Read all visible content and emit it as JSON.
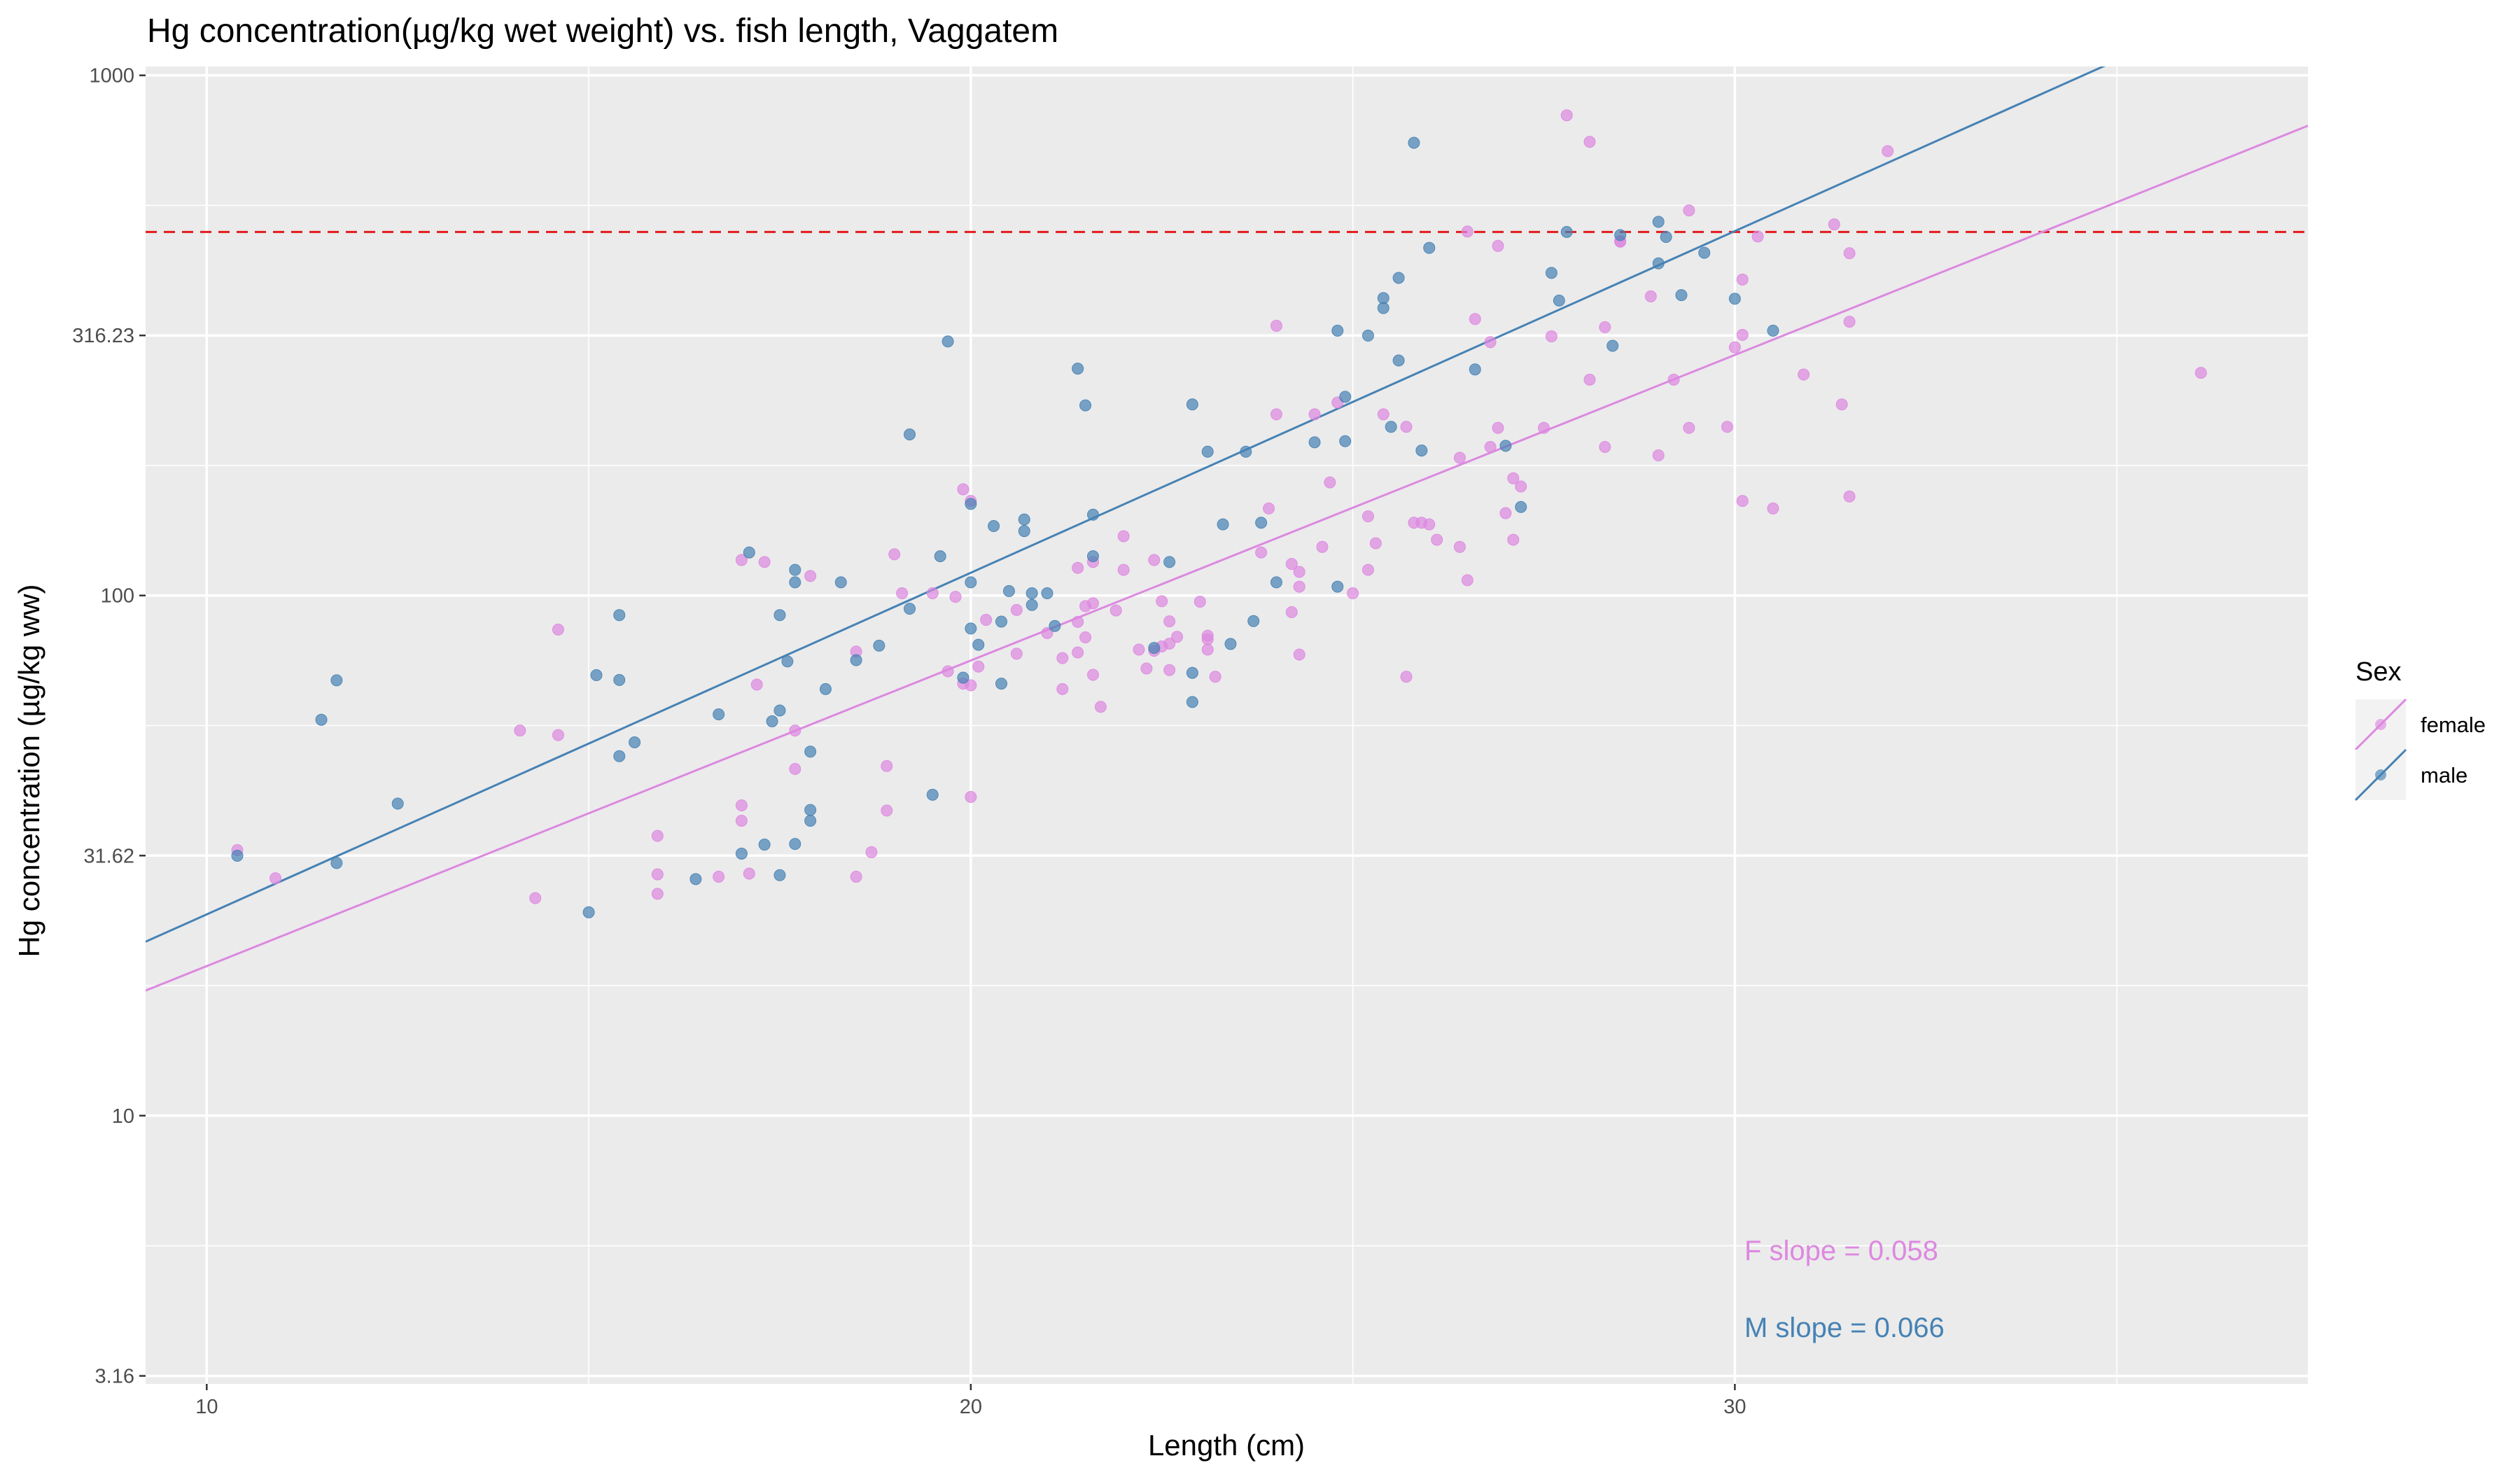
{
  "chart_data": {
    "type": "scatter",
    "title": "Hg concentration(µg/kg wet weight) vs. fish length, Vaggatem",
    "xlabel": "Length (cm)",
    "ylabel": "Hg concentration (µg/kg ww)",
    "y_scale": "log10",
    "xlim": [
      9.2,
      37.5
    ],
    "ylim": [
      3.05,
      1040
    ],
    "x_ticks": [
      10,
      20,
      30
    ],
    "y_ticks": [
      3.16,
      10,
      31.62,
      100,
      316.23,
      1000
    ],
    "y_tick_labels": [
      "3.16",
      "10",
      "31.62",
      "100",
      "316.23",
      "1000"
    ],
    "grid": true,
    "legend": {
      "title": "Sex",
      "position": "right",
      "entries": [
        "female",
        "male"
      ]
    },
    "reference_line": {
      "y": 500,
      "color": "#e41a1c",
      "style": "dashed"
    },
    "series": [
      {
        "name": "female",
        "color": "#dd88e0",
        "points": [
          [
            10.4,
            32.4
          ],
          [
            10.9,
            28.6
          ],
          [
            14.1,
            55
          ],
          [
            14.3,
            26.2
          ],
          [
            14.6,
            86
          ],
          [
            14.6,
            53.9
          ],
          [
            15.9,
            34.5
          ],
          [
            15.9,
            29.1
          ],
          [
            15.9,
            26.7
          ],
          [
            16.7,
            28.8
          ],
          [
            17.0,
            39.5
          ],
          [
            17.0,
            36.9
          ],
          [
            17.1,
            29.2
          ],
          [
            17.0,
            117
          ],
          [
            17.2,
            67.4
          ],
          [
            17.3,
            116
          ],
          [
            17.7,
            55
          ],
          [
            17.7,
            46.4
          ],
          [
            17.9,
            109
          ],
          [
            18.5,
            28.8
          ],
          [
            18.5,
            78
          ],
          [
            18.7,
            32.1
          ],
          [
            18.9,
            47
          ],
          [
            18.9,
            38.6
          ],
          [
            19.0,
            120
          ],
          [
            19.1,
            101
          ],
          [
            19.5,
            101
          ],
          [
            19.7,
            71.5
          ],
          [
            19.8,
            99.4
          ],
          [
            19.9,
            160
          ],
          [
            19.9,
            67.7
          ],
          [
            20.0,
            67.2
          ],
          [
            20.0,
            41
          ],
          [
            20.0,
            152
          ],
          [
            20.1,
            73
          ],
          [
            20.2,
            89.8
          ],
          [
            20.6,
            93.8
          ],
          [
            20.6,
            77.3
          ],
          [
            21.0,
            84.7
          ],
          [
            21.2,
            75.8
          ],
          [
            21.2,
            66.1
          ],
          [
            21.4,
            113
          ],
          [
            21.4,
            89
          ],
          [
            21.4,
            77.7
          ],
          [
            21.5,
            83.1
          ],
          [
            21.5,
            95.4
          ],
          [
            21.6,
            116
          ],
          [
            21.6,
            70.4
          ],
          [
            21.6,
            96.6
          ],
          [
            21.7,
            61.1
          ],
          [
            21.9,
            93.6
          ],
          [
            22.0,
            130
          ],
          [
            22.0,
            112
          ],
          [
            22.2,
            78.7
          ],
          [
            22.3,
            72.4
          ],
          [
            22.4,
            117
          ],
          [
            22.4,
            78.3
          ],
          [
            22.5,
            97.5
          ],
          [
            22.5,
            79.8
          ],
          [
            22.6,
            71.9
          ],
          [
            22.6,
            80.8
          ],
          [
            22.6,
            89.2
          ],
          [
            22.7,
            83.3
          ],
          [
            23.0,
            97.3
          ],
          [
            23.1,
            78.7
          ],
          [
            23.1,
            83.7
          ],
          [
            23.1,
            82.4
          ],
          [
            23.2,
            69.8
          ],
          [
            23.8,
            121
          ],
          [
            23.9,
            147
          ],
          [
            24.0,
            330
          ],
          [
            24.0,
            223
          ],
          [
            24.2,
            115
          ],
          [
            24.2,
            92.9
          ],
          [
            24.3,
            111
          ],
          [
            24.3,
            104
          ],
          [
            24.3,
            77
          ],
          [
            24.5,
            223
          ],
          [
            24.6,
            124
          ],
          [
            24.7,
            165
          ],
          [
            24.8,
            235
          ],
          [
            25.0,
            101
          ],
          [
            25.2,
            142
          ],
          [
            25.2,
            112
          ],
          [
            25.3,
            126
          ],
          [
            25.4,
            223
          ],
          [
            25.7,
            69.8
          ],
          [
            25.7,
            211
          ],
          [
            25.8,
            138
          ],
          [
            25.9,
            138
          ],
          [
            26.0,
            137
          ],
          [
            26.1,
            128
          ],
          [
            26.4,
            124
          ],
          [
            26.4,
            184
          ],
          [
            26.5,
            107
          ],
          [
            26.5,
            501
          ],
          [
            26.6,
            340
          ],
          [
            26.8,
            307
          ],
          [
            26.8,
            193
          ],
          [
            26.9,
            470
          ],
          [
            26.9,
            210
          ],
          [
            27.0,
            144
          ],
          [
            27.1,
            128
          ],
          [
            27.1,
            168
          ],
          [
            27.2,
            162
          ],
          [
            27.5,
            210
          ],
          [
            27.6,
            315
          ],
          [
            27.8,
            838
          ],
          [
            28.1,
            745
          ],
          [
            28.1,
            260
          ],
          [
            28.3,
            328
          ],
          [
            28.3,
            193
          ],
          [
            28.5,
            480
          ],
          [
            28.5,
            479
          ],
          [
            28.9,
            376
          ],
          [
            29.0,
            186
          ],
          [
            29.2,
            260
          ],
          [
            29.4,
            210
          ],
          [
            29.4,
            550
          ],
          [
            29.9,
            211
          ],
          [
            30.0,
            300
          ],
          [
            30.1,
            317
          ],
          [
            30.1,
            405
          ],
          [
            30.1,
            152
          ],
          [
            30.3,
            490
          ],
          [
            30.5,
            147
          ],
          [
            30.9,
            266
          ],
          [
            31.3,
            517
          ],
          [
            31.4,
            233
          ],
          [
            31.5,
            155
          ],
          [
            31.5,
            336
          ],
          [
            31.5,
            455
          ],
          [
            32.0,
            715
          ],
          [
            36.1,
            268
          ]
        ]
      },
      {
        "name": "male",
        "color": "#4682b4",
        "points": [
          [
            10.4,
            31.6
          ],
          [
            11.5,
            57.7
          ],
          [
            11.7,
            68.7
          ],
          [
            11.7,
            30.6
          ],
          [
            12.5,
            39.8
          ],
          [
            15.0,
            24.6
          ],
          [
            15.1,
            70.3
          ],
          [
            15.4,
            91.7
          ],
          [
            15.4,
            68.8
          ],
          [
            15.4,
            49.1
          ],
          [
            15.6,
            52.2
          ],
          [
            16.4,
            28.5
          ],
          [
            16.7,
            59.1
          ],
          [
            17.0,
            31.9
          ],
          [
            17.1,
            121
          ],
          [
            17.3,
            33.2
          ],
          [
            17.4,
            57.3
          ],
          [
            17.5,
            60.1
          ],
          [
            17.5,
            29
          ],
          [
            17.5,
            91.7
          ],
          [
            17.6,
            74.7
          ],
          [
            17.7,
            112
          ],
          [
            17.7,
            106
          ],
          [
            17.7,
            33.3
          ],
          [
            17.9,
            50.1
          ],
          [
            17.9,
            38.7
          ],
          [
            17.9,
            36.9
          ],
          [
            18.1,
            66.1
          ],
          [
            18.3,
            106
          ],
          [
            18.5,
            75.1
          ],
          [
            18.8,
            80.1
          ],
          [
            19.2,
            94.3
          ],
          [
            19.2,
            204
          ],
          [
            19.5,
            41.4
          ],
          [
            19.6,
            119
          ],
          [
            19.7,
            308
          ],
          [
            19.9,
            69.5
          ],
          [
            20.0,
            86.4
          ],
          [
            20.0,
            150
          ],
          [
            20.0,
            106
          ],
          [
            20.1,
            80.4
          ],
          [
            20.3,
            136
          ],
          [
            20.4,
            89.1
          ],
          [
            20.4,
            67.7
          ],
          [
            20.5,
            102
          ],
          [
            20.7,
            133
          ],
          [
            20.7,
            140
          ],
          [
            20.8,
            95.9
          ],
          [
            20.8,
            101
          ],
          [
            21.0,
            101
          ],
          [
            21.1,
            87.4
          ],
          [
            21.4,
            273
          ],
          [
            21.5,
            232
          ],
          [
            21.6,
            143
          ],
          [
            21.6,
            119
          ],
          [
            22.4,
            79.3
          ],
          [
            22.6,
            116
          ],
          [
            22.9,
            233
          ],
          [
            22.9,
            62.4
          ],
          [
            22.9,
            71
          ],
          [
            23.1,
            189
          ],
          [
            23.3,
            137
          ],
          [
            23.4,
            80.7
          ],
          [
            23.6,
            189
          ],
          [
            23.7,
            89.3
          ],
          [
            23.8,
            138
          ],
          [
            24.0,
            106
          ],
          [
            24.5,
            197
          ],
          [
            24.8,
            323
          ],
          [
            24.8,
            104
          ],
          [
            24.9,
            241
          ],
          [
            24.9,
            198
          ],
          [
            25.2,
            316
          ],
          [
            25.4,
            357
          ],
          [
            25.4,
            373
          ],
          [
            25.5,
            211
          ],
          [
            25.6,
            283
          ],
          [
            25.6,
            408
          ],
          [
            25.8,
            742
          ],
          [
            25.9,
            190
          ],
          [
            26.0,
            466
          ],
          [
            26.6,
            272
          ],
          [
            27.0,
            194
          ],
          [
            27.2,
            148
          ],
          [
            27.6,
            417
          ],
          [
            27.7,
            369
          ],
          [
            27.8,
            500
          ],
          [
            28.4,
            302
          ],
          [
            28.5,
            493
          ],
          [
            29.0,
            523
          ],
          [
            29.0,
            435
          ],
          [
            29.1,
            489
          ],
          [
            29.3,
            378
          ],
          [
            29.6,
            456
          ],
          [
            30.0,
            372
          ],
          [
            30.5,
            323
          ]
        ]
      }
    ],
    "fit_lines": [
      {
        "name": "female",
        "color": "#dd88e0",
        "x": [
          9.2,
          37.5
        ],
        "y": [
          17.4,
          800
        ]
      },
      {
        "name": "male",
        "color": "#4682b4",
        "x": [
          9.2,
          37.5
        ],
        "y": [
          21.6,
          1560
        ]
      }
    ],
    "annotations": [
      {
        "text": "F slope =  0.058",
        "color": "#dd88e0"
      },
      {
        "text": "M slope =  0.066",
        "color": "#4682b4"
      }
    ]
  }
}
